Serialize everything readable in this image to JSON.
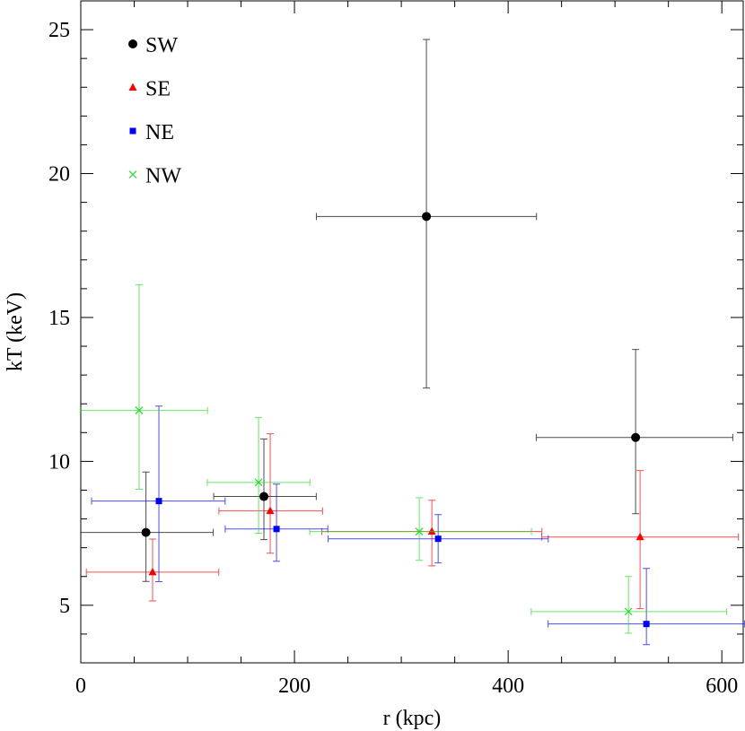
{
  "chart_data": {
    "type": "scatter",
    "xlabel": "r (kpc)",
    "ylabel": "kT (keV)",
    "xlim": [
      0,
      620
    ],
    "ylim": [
      3,
      26
    ],
    "xticks": [
      0,
      200,
      400,
      600
    ],
    "yticks": [
      5,
      10,
      15,
      20,
      25
    ],
    "xminorticks": [
      50,
      100,
      150,
      250,
      300,
      350,
      450,
      500,
      550
    ],
    "yminorticks": [
      4,
      6,
      7,
      8,
      9,
      11,
      12,
      13,
      14,
      16,
      17,
      18,
      19,
      21,
      22,
      23,
      24,
      26
    ],
    "legend": "upper-left",
    "series": [
      {
        "name": "SW",
        "color": "#000000",
        "marker": "circle",
        "x": [
          61,
          171.4,
          323.5,
          519.3
        ],
        "values": [
          7.53,
          8.78,
          18.51,
          10.83
        ],
        "xerr": [
          [
            61,
            63
          ],
          [
            47,
            49
          ],
          [
            103,
            103
          ],
          [
            93,
            91
          ]
        ],
        "yerr": [
          [
            1.7,
            2.1
          ],
          [
            1.5,
            2.0
          ],
          [
            5.96,
            6.15
          ],
          [
            2.65,
            3.06
          ]
        ]
      },
      {
        "name": "SE",
        "color": "#ff0000",
        "marker": "triangle",
        "x": [
          67.2,
          177.3,
          328.6,
          523.5
        ],
        "values": [
          6.15,
          8.28,
          7.56,
          7.37
        ],
        "xerr": [
          [
            62,
            62
          ],
          [
            48,
            49
          ],
          [
            103,
            103
          ],
          [
            92,
            92
          ]
        ],
        "yerr": [
          [
            1.0,
            1.15
          ],
          [
            1.47,
            2.68
          ],
          [
            1.19,
            1.09
          ],
          [
            2.49,
            2.31
          ]
        ]
      },
      {
        "name": "NE",
        "color": "#0000ff",
        "marker": "square",
        "x": [
          73.1,
          183.2,
          334.5,
          529.4
        ],
        "values": [
          8.62,
          7.65,
          7.31,
          4.35
        ],
        "xerr": [
          [
            63,
            62
          ],
          [
            48,
            48
          ],
          [
            103,
            103
          ],
          [
            92,
            92
          ]
        ],
        "yerr": [
          [
            2.8,
            3.3
          ],
          [
            1.12,
            1.56
          ],
          [
            0.84,
            0.84
          ],
          [
            0.72,
            1.93
          ]
        ]
      },
      {
        "name": "NW",
        "color": "#22dd22",
        "marker": "cross",
        "x": [
          54.6,
          166.4,
          316.8,
          512.6
        ],
        "values": [
          11.77,
          9.27,
          7.56,
          4.78
        ],
        "xerr": [
          [
            55,
            64
          ],
          [
            48,
            48
          ],
          [
            102.5,
            105
          ],
          [
            91,
            92
          ]
        ],
        "yerr": [
          [
            2.74,
            4.37
          ],
          [
            1.77,
            2.25
          ],
          [
            1.0,
            1.18
          ],
          [
            0.75,
            1.22
          ]
        ]
      }
    ]
  }
}
